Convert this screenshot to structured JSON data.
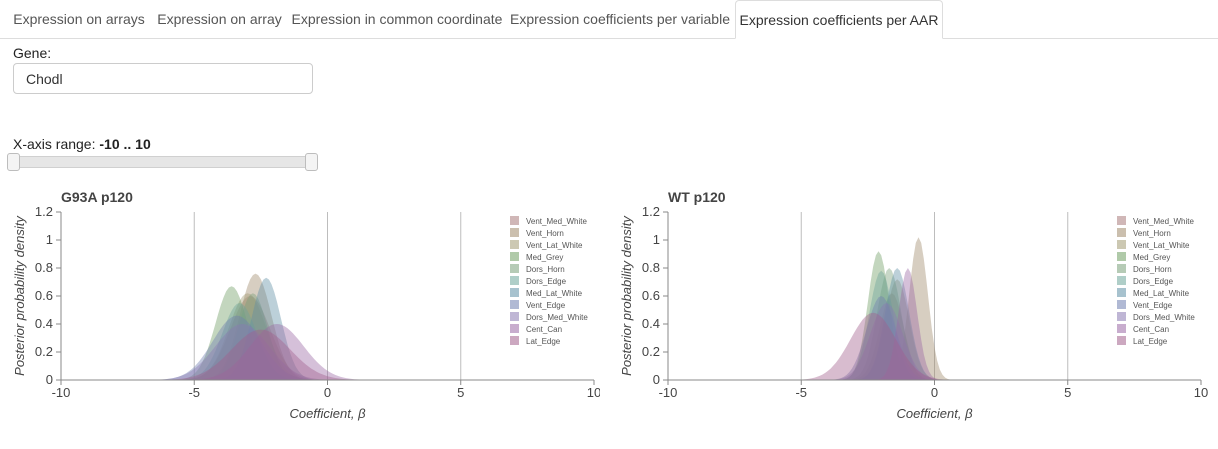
{
  "tabs": [
    {
      "label": "Expression on arrays",
      "active": false
    },
    {
      "label": "Expression on array",
      "active": false
    },
    {
      "label": "Expression in common coordinate",
      "active": false
    },
    {
      "label": "Expression coefficients per variable",
      "active": false
    },
    {
      "label": "Expression coefficients per AAR",
      "active": true
    }
  ],
  "gene": {
    "label": "Gene:",
    "value": "Chodl"
  },
  "range": {
    "label": "X-axis range:",
    "value_text": "-10 .. 10",
    "min": -10,
    "max": 10
  },
  "chart_data": [
    {
      "type": "area",
      "title": "G93A p120",
      "xlabel": "Coefficient, β",
      "ylabel": "Posterior probability density",
      "xlim": [
        -10,
        10
      ],
      "ylim": [
        0,
        1.2
      ],
      "xticks": [
        -10,
        -5,
        0,
        5,
        10
      ],
      "yticks": [
        0,
        0.2,
        0.4,
        0.6,
        0.8,
        1,
        1.2
      ],
      "grid_x": [
        -5,
        0,
        5
      ],
      "legend_position": "top-right",
      "series": [
        {
          "name": "Vent_Med_White",
          "color": "#a97b7b",
          "peak": -2.9,
          "height": 0.6,
          "sd": 0.75
        },
        {
          "name": "Vent_Horn",
          "color": "#a08a6c",
          "peak": -2.7,
          "height": 0.76,
          "sd": 0.6
        },
        {
          "name": "Vent_Lat_White",
          "color": "#a39a72",
          "peak": -3.0,
          "height": 0.62,
          "sd": 0.7
        },
        {
          "name": "Med_Grey",
          "color": "#6f9e63",
          "peak": -3.6,
          "height": 0.67,
          "sd": 0.6
        },
        {
          "name": "Dors_Horn",
          "color": "#7aa07a",
          "peak": -2.8,
          "height": 0.62,
          "sd": 0.55
        },
        {
          "name": "Dors_Edge",
          "color": "#6da59a",
          "peak": -3.3,
          "height": 0.55,
          "sd": 0.65
        },
        {
          "name": "Med_Lat_White",
          "color": "#5f8fa5",
          "peak": -2.3,
          "height": 0.73,
          "sd": 0.55
        },
        {
          "name": "Vent_Edge",
          "color": "#6f7fb0",
          "peak": -3.4,
          "height": 0.46,
          "sd": 0.9
        },
        {
          "name": "Dors_Med_White",
          "color": "#8a7ab2",
          "peak": -3.2,
          "height": 0.4,
          "sd": 1.0
        },
        {
          "name": "Cent_Can",
          "color": "#9a6aa5",
          "peak": -1.9,
          "height": 0.4,
          "sd": 1.0
        },
        {
          "name": "Lat_Edge",
          "color": "#a3608d",
          "peak": -2.5,
          "height": 0.36,
          "sd": 1.1
        }
      ]
    },
    {
      "type": "area",
      "title": "WT p120",
      "xlabel": "Coefficient, β",
      "ylabel": "Posterior probability density",
      "xlim": [
        -10,
        10
      ],
      "ylim": [
        0,
        1.2
      ],
      "xticks": [
        -10,
        -5,
        0,
        5,
        10
      ],
      "yticks": [
        0,
        0.2,
        0.4,
        0.6,
        0.8,
        1,
        1.2
      ],
      "grid_x": [
        -5,
        0,
        5
      ],
      "legend_position": "top-right",
      "series": [
        {
          "name": "Vent_Med_White",
          "color": "#a97b7b",
          "peak": -1.6,
          "height": 0.62,
          "sd": 0.45
        },
        {
          "name": "Vent_Horn",
          "color": "#a08a6c",
          "peak": -0.6,
          "height": 1.02,
          "sd": 0.35
        },
        {
          "name": "Vent_Lat_White",
          "color": "#a39a72",
          "peak": -1.4,
          "height": 0.72,
          "sd": 0.45
        },
        {
          "name": "Med_Grey",
          "color": "#6f9e63",
          "peak": -2.1,
          "height": 0.92,
          "sd": 0.4
        },
        {
          "name": "Dors_Horn",
          "color": "#7aa07a",
          "peak": -1.7,
          "height": 0.8,
          "sd": 0.45
        },
        {
          "name": "Dors_Edge",
          "color": "#6da59a",
          "peak": -2.0,
          "height": 0.78,
          "sd": 0.45
        },
        {
          "name": "Med_Lat_White",
          "color": "#5f8fa5",
          "peak": -1.4,
          "height": 0.8,
          "sd": 0.45
        },
        {
          "name": "Vent_Edge",
          "color": "#6f7fb0",
          "peak": -2.0,
          "height": 0.6,
          "sd": 0.55
        },
        {
          "name": "Dors_Med_White",
          "color": "#8a7ab2",
          "peak": -1.8,
          "height": 0.55,
          "sd": 0.6
        },
        {
          "name": "Cent_Can",
          "color": "#9a6aa5",
          "peak": -1.0,
          "height": 0.8,
          "sd": 0.35
        },
        {
          "name": "Lat_Edge",
          "color": "#a3608d",
          "peak": -2.3,
          "height": 0.48,
          "sd": 0.85
        }
      ]
    }
  ]
}
